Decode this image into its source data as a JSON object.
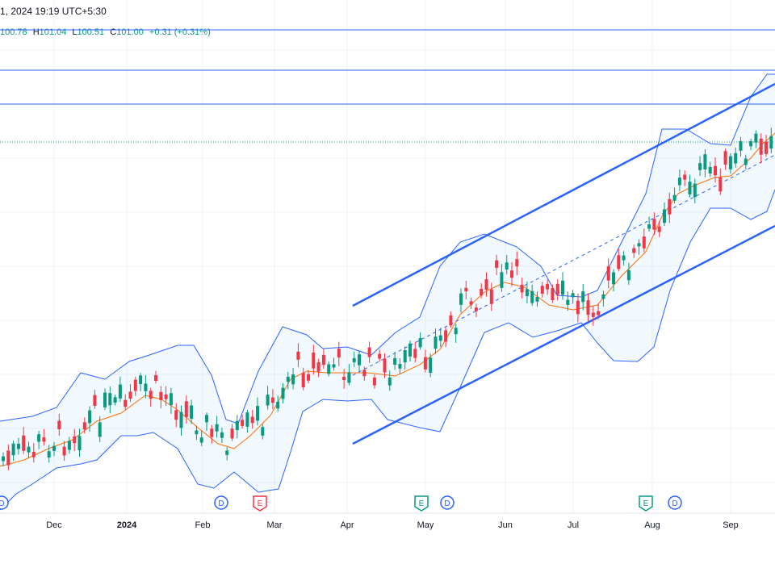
{
  "header": {
    "datetime": "1, 2024 19:19 UTC+5:30",
    "ohlc": {
      "open": "100.78",
      "high_prefix": "H",
      "high": "101.04",
      "low_prefix": "L",
      "low": "100.51",
      "close_prefix": "C",
      "close": "101.00",
      "change": "+0.31 (+0.31%)"
    }
  },
  "colors": {
    "up": "#089981",
    "down": "#f23645",
    "band": "#2962ff",
    "basis": "#ff6d00",
    "channel": "#2962ff",
    "hline": "#2962ff",
    "dotted": "#089981"
  },
  "chart_data": {
    "type": "candlestick",
    "x_tick_labels": [
      "Dec",
      "2024",
      "Feb",
      "Mar",
      "Apr",
      "May",
      "Jun",
      "Jul",
      "Aug",
      "Sep"
    ],
    "events": [
      {
        "label": "D",
        "type": "dividend",
        "month": "Nov"
      },
      {
        "label": "D",
        "type": "dividend",
        "month": "Feb"
      },
      {
        "label": "E",
        "type": "earnings",
        "month": "Feb"
      },
      {
        "label": "E",
        "type": "earnings",
        "month": "May"
      },
      {
        "label": "D",
        "type": "dividend",
        "month": "May"
      },
      {
        "label": "E",
        "type": "earnings",
        "month": "Aug"
      },
      {
        "label": "D",
        "type": "dividend",
        "month": "Aug"
      }
    ],
    "indicators": [
      "Bollinger Bands",
      "Parallel channel",
      "Horizontal lines"
    ],
    "last": {
      "open": 100.78,
      "high": 101.04,
      "low": 100.51,
      "close": 101.0,
      "change": 0.31,
      "change_pct": 0.31
    }
  }
}
